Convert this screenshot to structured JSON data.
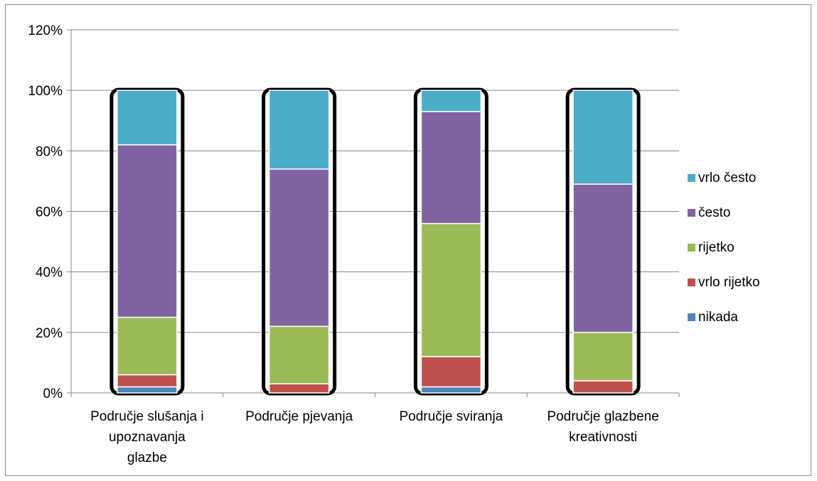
{
  "chart_data": {
    "type": "bar",
    "stacked": true,
    "categories": [
      "Područje slušanja i upoznavanja glazbe",
      "Područje pjevanja",
      "Područje sviranja",
      "Područje glazbene kreativnosti"
    ],
    "category_label_lines": [
      [
        "Područje slušanja i",
        "upoznavanja",
        "glazbe"
      ],
      [
        "Područje pjevanja"
      ],
      [
        "Područje sviranja"
      ],
      [
        "Područje glazbene",
        "kreativnosti"
      ]
    ],
    "series": [
      {
        "name": "nikada",
        "color": "#4f81bd",
        "values": [
          2,
          0,
          2,
          0
        ]
      },
      {
        "name": "vrlo rijetko",
        "color": "#c0504d",
        "values": [
          4,
          3,
          10,
          4
        ]
      },
      {
        "name": "rijetko",
        "color": "#9bbb59",
        "values": [
          19,
          19,
          44,
          16
        ]
      },
      {
        "name": "često",
        "color": "#8064a2",
        "values": [
          57,
          52,
          37,
          49
        ]
      },
      {
        "name": "vrlo često",
        "color": "#4bacc6",
        "values": [
          18,
          26,
          7,
          31
        ]
      }
    ],
    "ylim": [
      0,
      120
    ],
    "yticks": [
      "0%",
      "20%",
      "40%",
      "60%",
      "80%",
      "100%",
      "120%"
    ],
    "grid": true,
    "legend_position": "right",
    "xlabel": "",
    "ylabel": ""
  }
}
